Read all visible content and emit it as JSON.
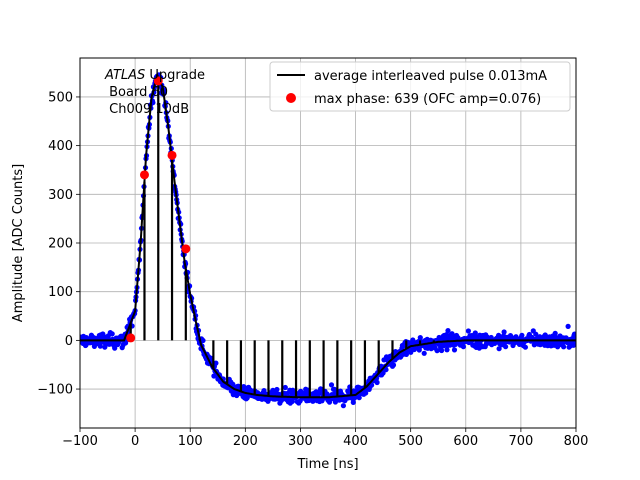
{
  "chart_data": {
    "type": "scatter",
    "title": "",
    "xlabel": "Time [ns]",
    "ylabel": "Amplitude [ADC Counts]",
    "xlim": [
      -100,
      800
    ],
    "ylim": [
      -180,
      580
    ],
    "x_ticks": [
      -100,
      0,
      100,
      200,
      300,
      400,
      500,
      600,
      700,
      800
    ],
    "y_ticks": [
      -100,
      0,
      100,
      200,
      300,
      400,
      500
    ],
    "grid": true,
    "legend_position": "top-right",
    "annotation": {
      "italic": "ATLAS",
      "line1_rest": " Upgrade",
      "line2": " Board 60",
      "line3": " Ch009 10dB"
    },
    "series": [
      {
        "name": "average interleaved pulse 0.013mA",
        "kind": "line",
        "color": "#000000",
        "x": [
          -100,
          -20,
          0,
          10,
          20,
          30,
          40,
          50,
          60,
          70,
          80,
          90,
          100,
          110,
          120,
          140,
          160,
          180,
          200,
          220,
          250,
          300,
          350,
          400,
          420,
          440,
          460,
          480,
          500,
          550,
          600,
          650,
          700,
          750,
          800
        ],
        "y": [
          0,
          0,
          60,
          200,
          380,
          500,
          545,
          520,
          440,
          340,
          250,
          160,
          95,
          40,
          -10,
          -55,
          -85,
          -100,
          -108,
          -112,
          -115,
          -117,
          -117,
          -112,
          -95,
          -70,
          -45,
          -25,
          -12,
          -3,
          0,
          0,
          0,
          0,
          0
        ]
      },
      {
        "name": "samples",
        "kind": "scatter",
        "color": "#0000ff"
      },
      {
        "name": "max phase: 639 (OFC amp=0.076)",
        "kind": "scatter",
        "color": "#ff0000",
        "x": [
          -8,
          17,
          42,
          67,
          92
        ],
        "y": [
          5,
          340,
          533,
          380,
          188
        ]
      }
    ],
    "sample_stems": {
      "start": -8,
      "step": 25,
      "end": 792
    }
  }
}
